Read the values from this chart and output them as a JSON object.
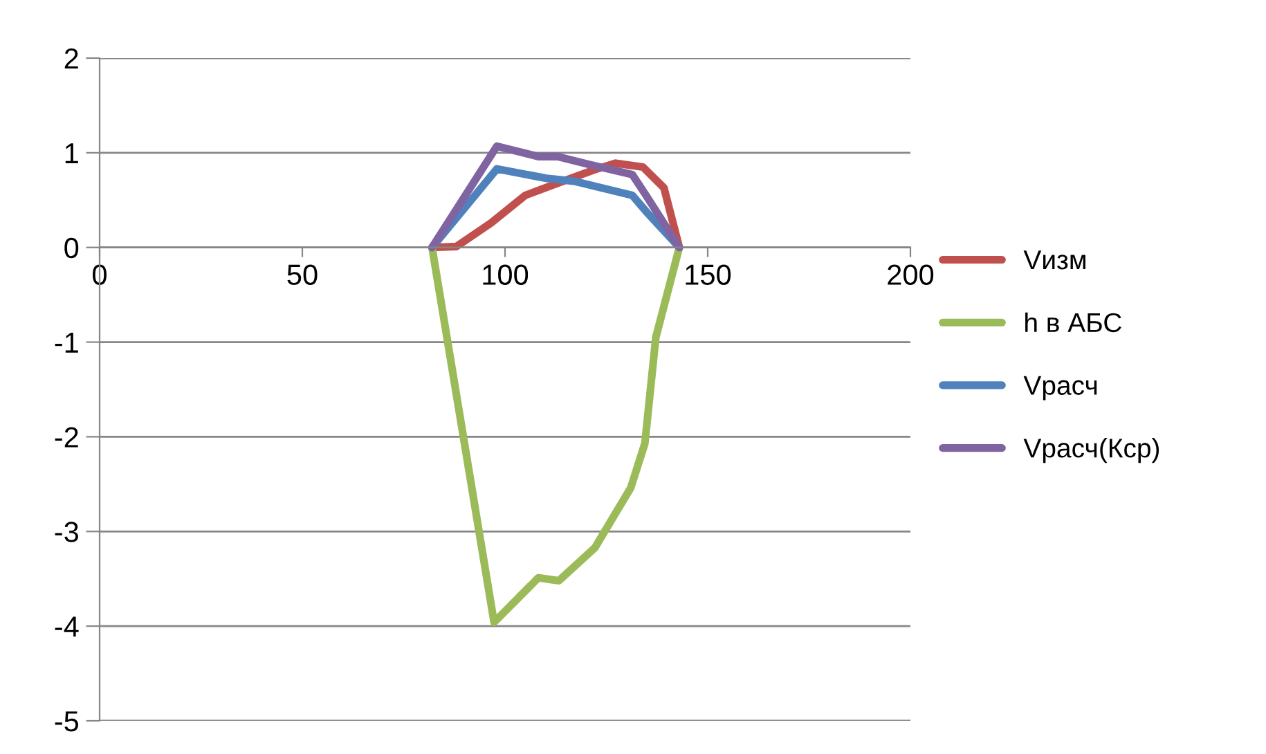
{
  "chart_data": {
    "type": "line",
    "xlim": [
      0,
      200
    ],
    "xticks": [
      0,
      50,
      100,
      150,
      200
    ],
    "ylim": [
      -5,
      2
    ],
    "yticks": [
      -5,
      -4,
      -3,
      -2,
      -1,
      0,
      1,
      2
    ],
    "grid": "y",
    "legend": "right",
    "marker": "none",
    "line_style": "solid",
    "series": [
      {
        "name": "Vизм",
        "color": "#c0504d",
        "x": [
          82,
          88,
          96.6,
          105,
          113.7,
          122,
          127.3,
          134,
          139.2,
          143
        ],
        "values": [
          0,
          0.01,
          0.26,
          0.55,
          0.69,
          0.82,
          0.89,
          0.85,
          0.63,
          0
        ]
      },
      {
        "name": "h в АБС",
        "color": "#9bbb59",
        "x": [
          82,
          97.3,
          108.2,
          113.3,
          122.2,
          131,
          134.5,
          137.2,
          143
        ],
        "values": [
          0,
          -3.96,
          -3.49,
          -3.52,
          -3.17,
          -2.54,
          -2.07,
          -0.95,
          0
        ]
      },
      {
        "name": "Vрасч",
        "color": "#4f81bd",
        "x": [
          82,
          98,
          110.2,
          117,
          131.4,
          134.8,
          143
        ],
        "values": [
          0,
          0.83,
          0.73,
          0.7,
          0.55,
          0.38,
          0
        ]
      },
      {
        "name": "Vрасч(Кср)",
        "color": "#8064a2",
        "x": [
          82,
          98,
          108.2,
          113,
          120.5,
          131.4,
          134.8,
          143
        ],
        "values": [
          0,
          1.07,
          0.96,
          0.96,
          0.88,
          0.77,
          0.55,
          0
        ]
      }
    ]
  }
}
